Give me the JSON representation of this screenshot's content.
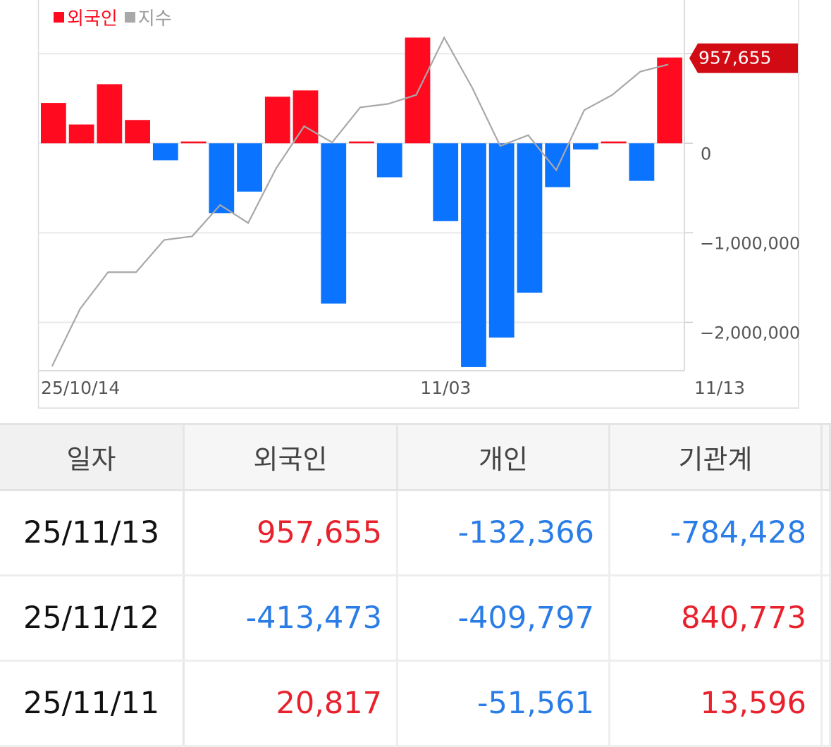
{
  "colors": {
    "foreign_pos": "#ff0a1e",
    "foreign_neg": "#0a73ff",
    "index_line": "#a8a8a8",
    "table_pos": "#e8222d",
    "table_neg": "#2a7de6"
  },
  "legend": {
    "foreign": "외국인",
    "index": "지수"
  },
  "chart_data": {
    "type": "bar",
    "legend": [
      "외국인",
      "지수"
    ],
    "legend_position": "top-left",
    "x_tick_labels": [
      "25/10/14",
      "11/03",
      "11/13"
    ],
    "x_tick_indices": [
      0,
      14,
      23
    ],
    "ylim": [
      -2540000,
      1600000
    ],
    "y_ticks": [
      0,
      -1000000,
      -2000000
    ],
    "y_tick_labels": [
      "0",
      "−1,000,000",
      "−2,000,000"
    ],
    "grid_y": [
      1000000,
      0,
      -1000000,
      -2000000
    ],
    "series": [
      {
        "name": "외국인",
        "type": "bar",
        "values": [
          450000,
          210000,
          660000,
          260000,
          -190000,
          20000,
          -780000,
          -540000,
          520000,
          590000,
          -1790000,
          20000,
          -380000,
          1180000,
          -870000,
          -2500000,
          -2170000,
          -1670000,
          -490000,
          -70000,
          20000,
          -420000,
          957655
        ]
      },
      {
        "name": "지수",
        "type": "line",
        "values": [
          -2490000,
          -1850000,
          -1440000,
          -1440000,
          -1080000,
          -1040000,
          -690000,
          -890000,
          -280000,
          190000,
          10000,
          400000,
          440000,
          540000,
          1180000,
          620000,
          -30000,
          90000,
          -300000,
          370000,
          540000,
          800000,
          880000
        ]
      }
    ],
    "last_value_label": "957,655"
  },
  "table": {
    "headers": [
      "일자",
      "외국인",
      "개인",
      "기관계"
    ],
    "rows": [
      {
        "date": "25/11/13",
        "foreign": "957,655",
        "foreign_sign": "pos",
        "individual": "-132,366",
        "individual_sign": "neg",
        "institution": "-784,428",
        "institution_sign": "neg"
      },
      {
        "date": "25/11/12",
        "foreign": "-413,473",
        "foreign_sign": "neg",
        "individual": "-409,797",
        "individual_sign": "neg",
        "institution": "840,773",
        "institution_sign": "pos"
      },
      {
        "date": "25/11/11",
        "foreign": "20,817",
        "foreign_sign": "pos",
        "individual": "-51,561",
        "individual_sign": "neg",
        "institution": "13,596",
        "institution_sign": "pos"
      }
    ]
  }
}
